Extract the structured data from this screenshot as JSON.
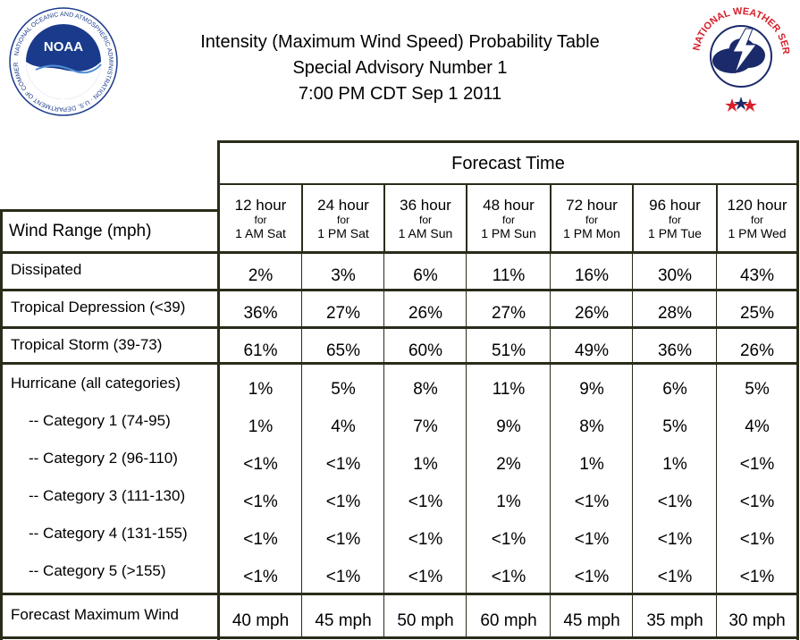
{
  "header": {
    "title": "Intensity (Maximum Wind Speed) Probability Table",
    "advisory": "Special Advisory Number 1",
    "time": "7:00 PM CDT Sep 1 2011"
  },
  "logos": {
    "noaa": {
      "name": "noaa-logo",
      "text": "NOAA",
      "ring_text": "NATIONAL OCEANIC AND ATMOSPHERIC ADMINISTRATION · U.S. DEPARTMENT OF COMMERCE"
    },
    "nws": {
      "name": "nws-logo",
      "ring_text": "NATIONAL WEATHER SERVICE"
    }
  },
  "colors": {
    "border": "#2b2b1a",
    "noaa_blue": "#1a3a8c",
    "nws_red": "#d6202a",
    "nws_navy": "#1b2a6b"
  },
  "table": {
    "group_header": "Forecast Time",
    "row_header_label": "Wind Range (mph)",
    "columns": [
      {
        "hour": "12 hour",
        "for": "for",
        "when": "1 AM Sat"
      },
      {
        "hour": "24 hour",
        "for": "for",
        "when": "1 PM Sat"
      },
      {
        "hour": "36 hour",
        "for": "for",
        "when": "1 AM Sun"
      },
      {
        "hour": "48 hour",
        "for": "for",
        "when": "1 PM Sun"
      },
      {
        "hour": "72 hour",
        "for": "for",
        "when": "1 PM Mon"
      },
      {
        "hour": "96 hour",
        "for": "for",
        "when": "1 PM Tue"
      },
      {
        "hour": "120 hour",
        "for": "for",
        "when": "1 PM Wed"
      }
    ],
    "rows": [
      {
        "label": "Dissipated",
        "values": [
          "2%",
          "3%",
          "6%",
          "11%",
          "16%",
          "30%",
          "43%"
        ]
      },
      {
        "label": "Tropical Depression (<39)",
        "values": [
          "36%",
          "27%",
          "26%",
          "27%",
          "26%",
          "28%",
          "25%"
        ]
      },
      {
        "label": "Tropical Storm (39-73)",
        "values": [
          "61%",
          "65%",
          "60%",
          "51%",
          "49%",
          "36%",
          "26%"
        ]
      },
      {
        "label": "Hurricane (all categories)",
        "values": [
          "1%",
          "5%",
          "8%",
          "11%",
          "9%",
          "6%",
          "5%"
        ]
      },
      {
        "label": "-- Category 1 (74-95)",
        "values": [
          "1%",
          "4%",
          "7%",
          "9%",
          "8%",
          "5%",
          "4%"
        ]
      },
      {
        "label": "-- Category 2 (96-110)",
        "values": [
          "<1%",
          "<1%",
          "1%",
          "2%",
          "1%",
          "1%",
          "<1%"
        ]
      },
      {
        "label": "-- Category 3 (111-130)",
        "values": [
          "<1%",
          "<1%",
          "<1%",
          "1%",
          "<1%",
          "<1%",
          "<1%"
        ]
      },
      {
        "label": "-- Category 4 (131-155)",
        "values": [
          "<1%",
          "<1%",
          "<1%",
          "<1%",
          "<1%",
          "<1%",
          "<1%"
        ]
      },
      {
        "label": "-- Category 5 (>155)",
        "values": [
          "<1%",
          "<1%",
          "<1%",
          "<1%",
          "<1%",
          "<1%",
          "<1%"
        ]
      },
      {
        "label": "Forecast Maximum Wind",
        "values": [
          "40 mph",
          "45 mph",
          "50 mph",
          "60 mph",
          "45 mph",
          "35 mph",
          "30 mph"
        ]
      }
    ]
  }
}
